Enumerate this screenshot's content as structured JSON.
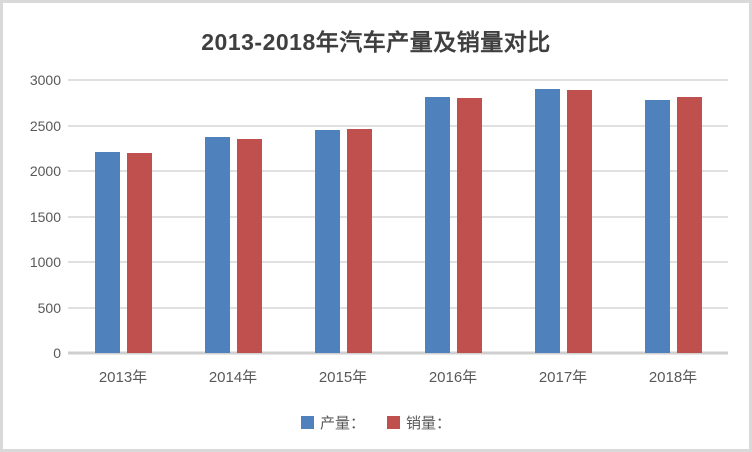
{
  "chart_data": {
    "type": "bar",
    "title": "2013-2018年汽车产量及销量对比",
    "categories": [
      "2013年",
      "2014年",
      "2015年",
      "2016年",
      "2017年",
      "2018年"
    ],
    "series": [
      {
        "name": "产量：",
        "color": "#4F81BD",
        "values": [
          2212,
          2372,
          2450,
          2812,
          2902,
          2781
        ]
      },
      {
        "name": "销量：",
        "color": "#C0504D",
        "values": [
          2198,
          2349,
          2460,
          2803,
          2888,
          2808
        ]
      }
    ],
    "ylim": [
      0,
      3000
    ],
    "ytick_step": 500,
    "yticks": [
      0,
      500,
      1000,
      1500,
      2000,
      2500,
      3000
    ],
    "grid": true,
    "legend_position": "bottom"
  },
  "colors": {
    "background": "#ffffff",
    "frame_border": "#d9d9d9",
    "gridline": "#e0e0e0",
    "axis_line": "#cfcfcf",
    "title_text": "#3f3f3f",
    "tick_text": "#595959",
    "series_blue": "#4F81BD",
    "series_red": "#C0504D"
  }
}
